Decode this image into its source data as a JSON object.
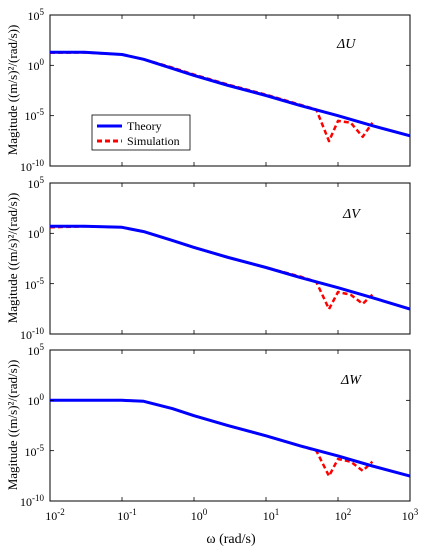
{
  "chart_data": [
    {
      "type": "line",
      "annotation": "ΔU",
      "ylabel": "Magitude ((m/s)²/(rad/s))",
      "xlabel": "",
      "xscale": "log",
      "yscale": "log",
      "xlim": [
        0.01,
        1000
      ],
      "ylim": [
        1e-10,
        100000.0
      ],
      "xtick_labels": [],
      "ytick_labels": [
        "10^5",
        "10^0",
        "10^-5",
        "10^-10"
      ],
      "legend": {
        "position": "left-lower",
        "entries": [
          "Theory",
          "Simulation"
        ]
      },
      "series": [
        {
          "name": "Theory",
          "color": "#0000ff",
          "style": "solid",
          "x": [
            0.01,
            0.03,
            0.1,
            0.2,
            0.5,
            1,
            3,
            10,
            30,
            100,
            300,
            1000
          ],
          "y": [
            20,
            20,
            12,
            4,
            0.5,
            0.1,
            0.01,
            0.001,
            0.0001,
            1e-05,
            1e-06,
            1e-07
          ]
        },
        {
          "name": "Simulation",
          "color": "#ff0000",
          "style": "dashed",
          "x": [
            0.01,
            0.03,
            0.1,
            0.2,
            0.5,
            1,
            3,
            10,
            30,
            50,
            75,
            100,
            150,
            220,
            300
          ],
          "y": [
            18,
            19,
            12,
            4,
            0.6,
            0.12,
            0.012,
            0.0012,
            0.00012,
            4e-05,
            3e-08,
            3e-06,
            2e-06,
            8e-08,
            2e-06
          ]
        }
      ]
    },
    {
      "type": "line",
      "annotation": "ΔV",
      "ylabel": "Magitude ((m/s)²/(rad/s))",
      "xlabel": "",
      "xscale": "log",
      "yscale": "log",
      "xlim": [
        0.01,
        1000
      ],
      "ylim": [
        1e-10,
        100000.0
      ],
      "xtick_labels": [],
      "ytick_labels": [
        "10^5",
        "10^0",
        "10^-5",
        "10^-10"
      ],
      "series": [
        {
          "name": "Theory",
          "color": "#0000ff",
          "style": "solid",
          "x": [
            0.01,
            0.03,
            0.1,
            0.2,
            0.5,
            1,
            3,
            10,
            30,
            100,
            300,
            1000
          ],
          "y": [
            5,
            5,
            4,
            1.5,
            0.2,
            0.04,
            0.004,
            0.0004,
            4e-05,
            4e-06,
            4e-07,
            3e-08
          ]
        },
        {
          "name": "Simulation",
          "color": "#ff0000",
          "style": "dashed",
          "x": [
            0.01,
            0.03,
            0.1,
            0.2,
            0.5,
            1,
            3,
            10,
            30,
            50,
            75,
            100,
            150,
            220,
            300
          ],
          "y": [
            4,
            5,
            4,
            1.5,
            0.2,
            0.04,
            0.004,
            0.0004,
            5e-05,
            1.5e-05,
            3e-08,
            1.5e-06,
            8e-07,
            1e-07,
            8e-07
          ]
        }
      ]
    },
    {
      "type": "line",
      "annotation": "ΔW",
      "ylabel": "Magitude ((m/s)²/(rad/s))",
      "xlabel": "ω (rad/s)",
      "xscale": "log",
      "yscale": "log",
      "xlim": [
        0.01,
        1000
      ],
      "ylim": [
        1e-10,
        100000.0
      ],
      "xtick_labels": [
        "10^-2",
        "10^-1",
        "10^0",
        "10^1",
        "10^2",
        "10^3"
      ],
      "ytick_labels": [
        "10^5",
        "10^0",
        "10^-5",
        "10^-10"
      ],
      "series": [
        {
          "name": "Theory",
          "color": "#0000ff",
          "style": "solid",
          "x": [
            0.01,
            0.03,
            0.1,
            0.2,
            0.5,
            1,
            3,
            10,
            30,
            100,
            300,
            1000
          ],
          "y": [
            1,
            1,
            1,
            0.8,
            0.15,
            0.03,
            0.003,
            0.0003,
            3e-05,
            3e-06,
            3e-07,
            3e-08
          ]
        },
        {
          "name": "Simulation",
          "color": "#ff0000",
          "style": "dashed",
          "x": [
            0.01,
            0.03,
            0.1,
            0.2,
            0.5,
            1,
            3,
            10,
            30,
            50,
            75,
            100,
            150,
            220,
            300
          ],
          "y": [
            1,
            1,
            1,
            0.8,
            0.15,
            0.03,
            0.003,
            0.0003,
            3e-05,
            1e-05,
            3e-08,
            1.5e-06,
            8e-07,
            1e-07,
            8e-07
          ]
        }
      ]
    }
  ]
}
